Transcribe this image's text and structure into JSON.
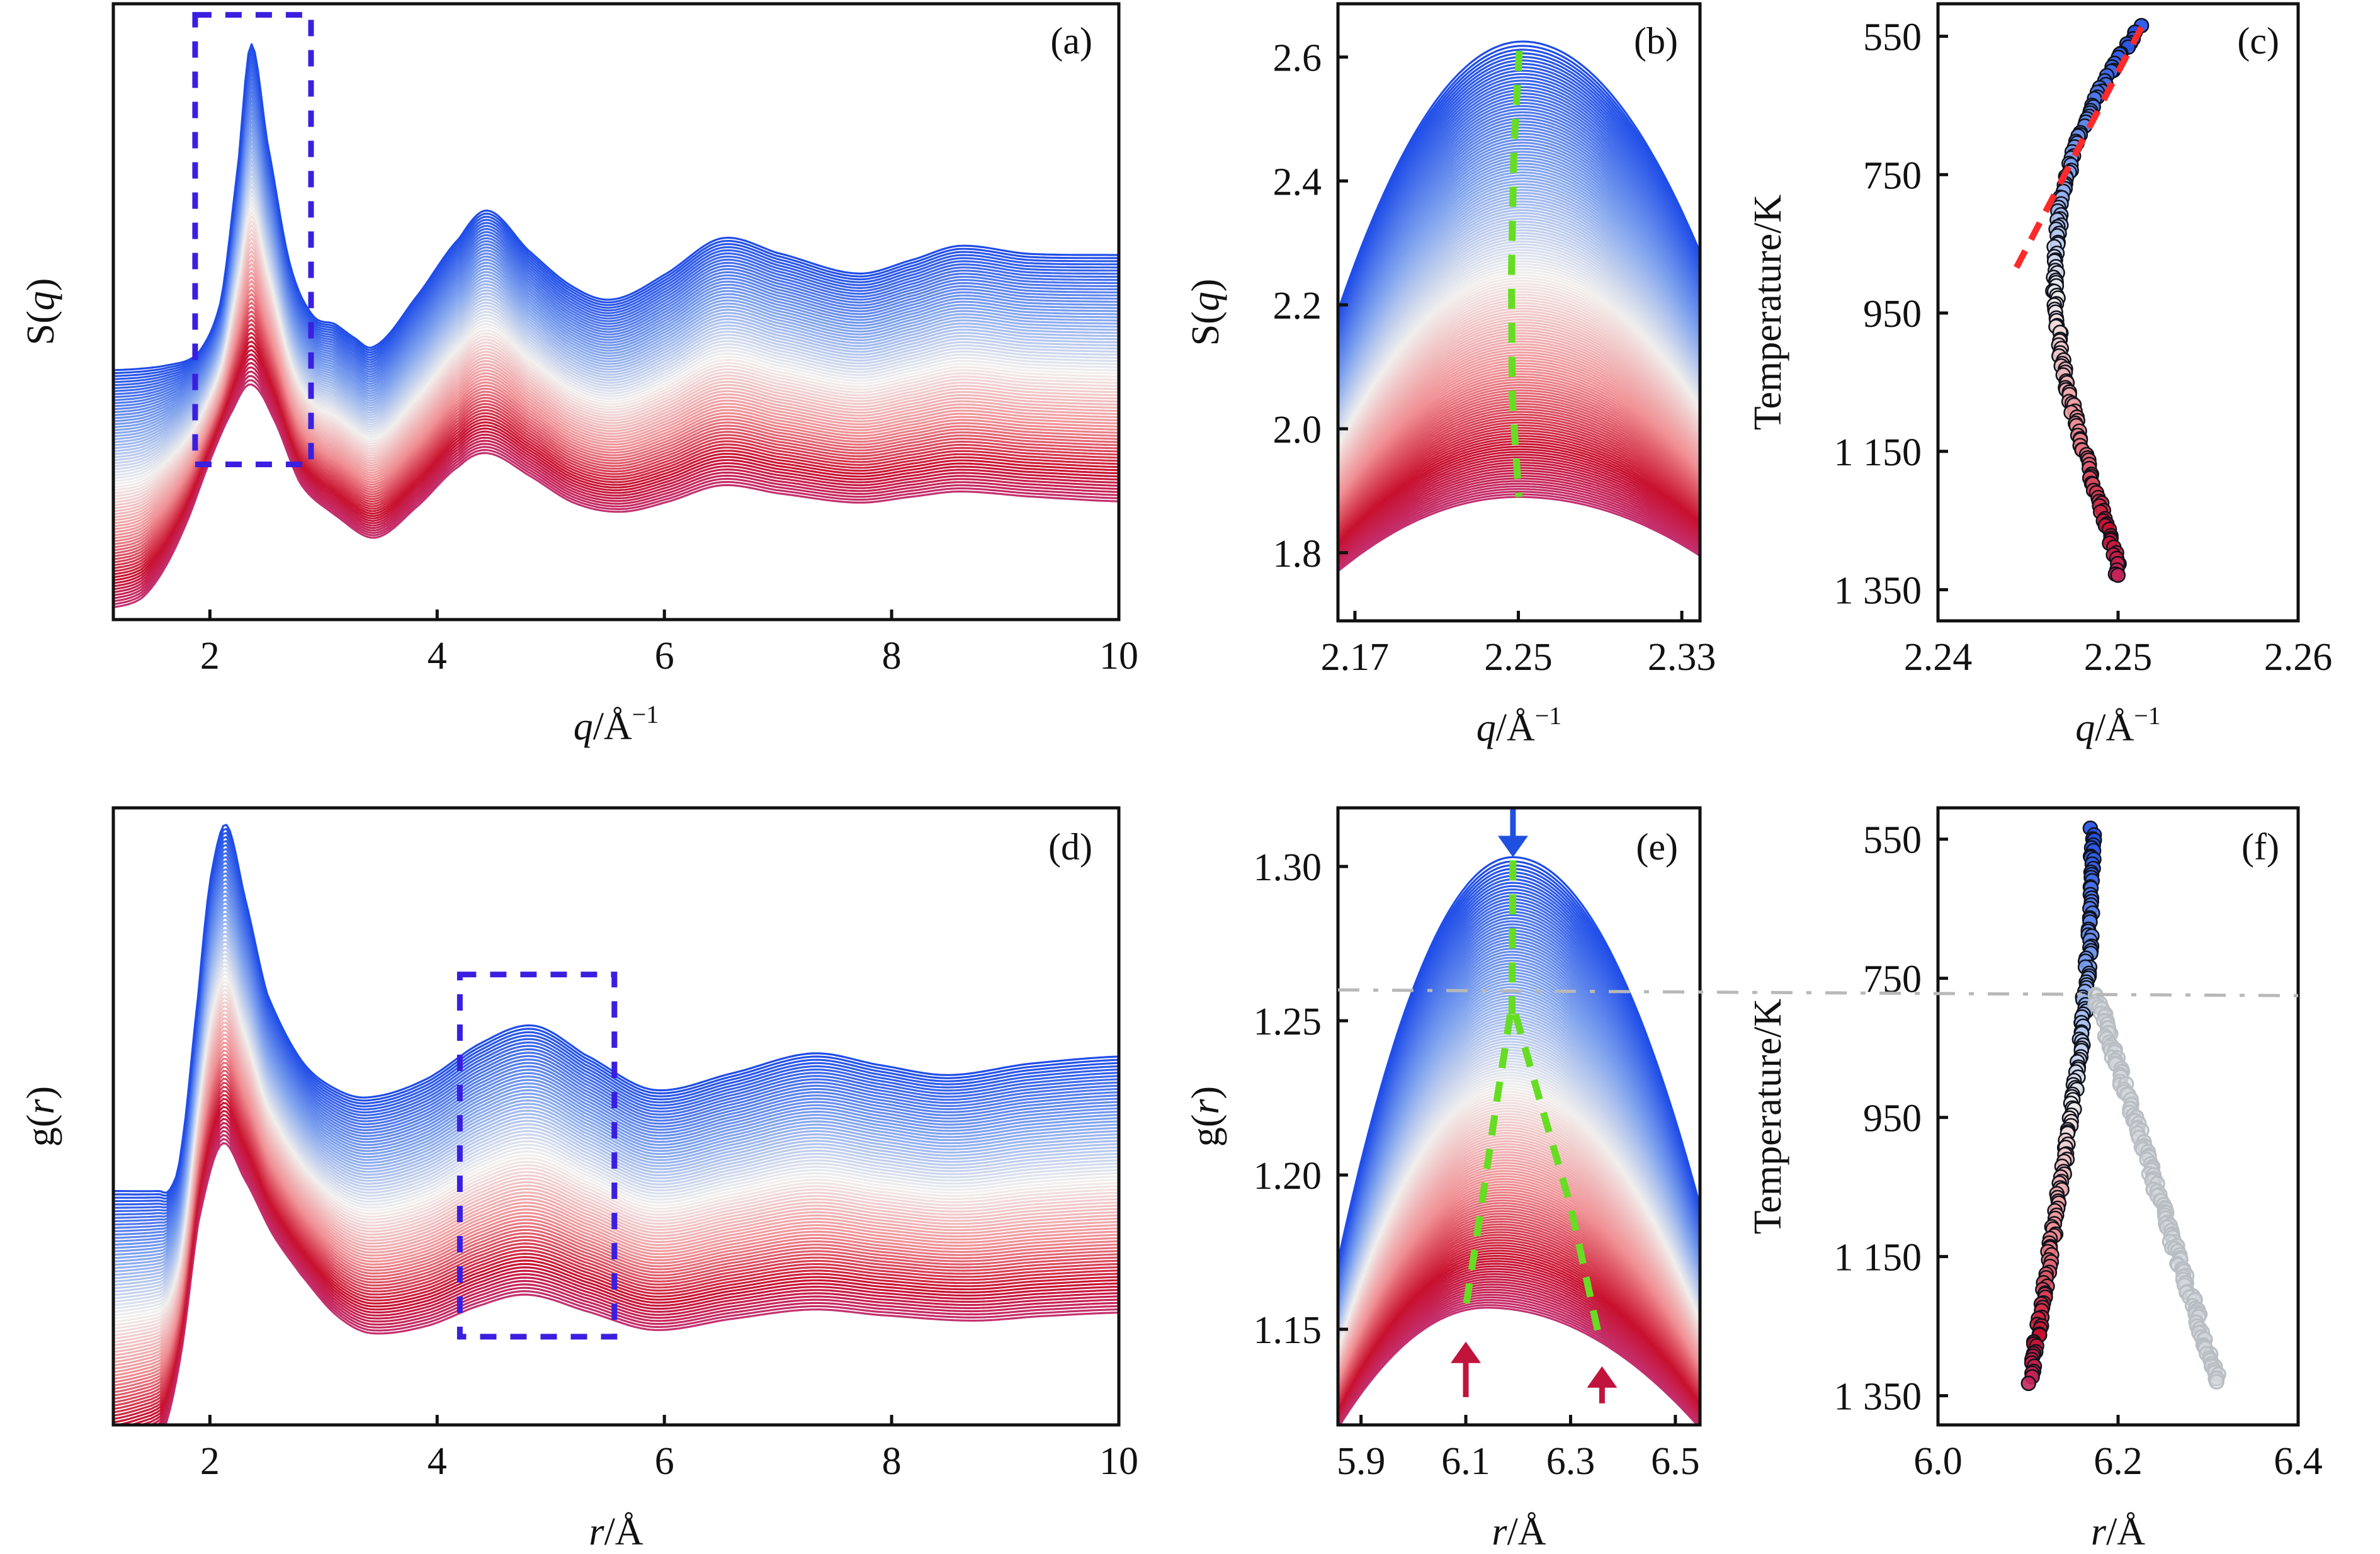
{
  "figure": {
    "colors": {
      "low_temperature": "#1f4de8",
      "mid_temperature": "#f1efed",
      "high_temperature": "#c8102e",
      "highest_temperature_tint": "#c4306f",
      "zoom_box": "#3a1fe0",
      "peak_trace": "#66dd22",
      "fit_line": "#ff2a2a",
      "reference_line": "#b8b8b8",
      "arrow_low_T": "#2050e0",
      "arrow_high_T": "#c0143c",
      "split_peak_markers": "#b8bec4"
    },
    "temperature_range_K": [
      537,
      1330
    ],
    "curve_count": 80
  },
  "chart_data": [
    {
      "id": "a",
      "panel_label": "(a)",
      "type": "line",
      "title": "",
      "xlabel_var": "q",
      "xlabel_unit": "/Å",
      "xlabel_sup": "−1",
      "ylabel_var": "q",
      "ylabel_prefix": "S(",
      "ylabel_suffix": ")",
      "xlim": [
        1.15,
        10
      ],
      "ylim": [
        0,
        1
      ],
      "y_units": "arbitrary (vertically offset curves, no y ticks)",
      "xticks": [
        2,
        4,
        6,
        8,
        10
      ],
      "xtick_labels": [
        "2",
        "4",
        "6",
        "8",
        "10"
      ],
      "series": [
        {
          "name": "lowest temperature (blue)",
          "x": [
            1.15,
            1.6,
            1.9,
            2.1,
            2.25,
            2.36,
            2.5,
            2.7,
            2.9,
            3.1,
            3.25,
            3.45,
            3.8,
            4.2,
            4.45,
            4.8,
            5.2,
            5.55,
            6.0,
            6.5,
            7.0,
            7.7,
            8.2,
            8.6,
            9.2,
            10
          ],
          "y": [
            0.405,
            0.412,
            0.433,
            0.52,
            0.74,
            0.934,
            0.78,
            0.58,
            0.495,
            0.48,
            0.46,
            0.444,
            0.52,
            0.62,
            0.664,
            0.6,
            0.54,
            0.52,
            0.56,
            0.619,
            0.595,
            0.562,
            0.585,
            0.607,
            0.594,
            0.592
          ]
        },
        {
          "name": "highest temperature (red)",
          "x": [
            1.15,
            1.4,
            1.6,
            1.8,
            2.0,
            2.2,
            2.36,
            2.55,
            2.8,
            3.1,
            3.45,
            3.8,
            4.2,
            4.45,
            4.8,
            5.2,
            5.6,
            6.0,
            6.5,
            7.0,
            7.7,
            8.2,
            8.6,
            9.2,
            10
          ],
          "y": [
            0.02,
            0.035,
            0.083,
            0.16,
            0.258,
            0.34,
            0.382,
            0.33,
            0.22,
            0.17,
            0.133,
            0.18,
            0.25,
            0.27,
            0.235,
            0.19,
            0.175,
            0.19,
            0.218,
            0.205,
            0.19,
            0.2,
            0.208,
            0.2,
            0.192
          ]
        }
      ],
      "annotations": [
        {
          "type": "dashed-box",
          "x": [
            1.87,
            2.89
          ],
          "y": [
            0.252,
            0.982
          ],
          "meaning": "region magnified in (b)"
        }
      ]
    },
    {
      "id": "b",
      "panel_label": "(b)",
      "type": "line",
      "xlabel_var": "q",
      "xlabel_unit": "/Å",
      "xlabel_sup": "−1",
      "ylabel_var": "q",
      "ylabel_prefix": "S(",
      "ylabel_suffix": ")",
      "xlim": [
        2.1617,
        2.3389
      ],
      "ylim": [
        1.69,
        2.686
      ],
      "xticks": [
        2.17,
        2.25,
        2.33
      ],
      "xtick_labels": [
        "2.17",
        "2.25",
        "2.33"
      ],
      "yticks": [
        1.8,
        2.0,
        2.2,
        2.4,
        2.6
      ],
      "ytick_labels": [
        "1.8",
        "2.0",
        "2.2",
        "2.4",
        "2.6"
      ],
      "series": [
        {
          "name": "lowest temperature (blue)",
          "peak_x": 2.252,
          "peak_y": 2.625,
          "y_at_xmin": 2.19,
          "y_at_xmax": 2.285
        },
        {
          "name": "highest temperature (red)",
          "peak_x": 2.25,
          "peak_y": 1.89,
          "y_at_xmin": 1.77,
          "y_at_xmax": 1.795
        }
      ],
      "annotations": [
        {
          "type": "dashed-line",
          "name": "peak position trace",
          "x": [
            2.2505,
            2.2478,
            2.2466,
            2.247,
            2.249,
            2.2503
          ],
          "y": [
            2.61,
            2.45,
            2.25,
            2.05,
            1.95,
            1.89
          ]
        }
      ]
    },
    {
      "id": "c",
      "panel_label": "(c)",
      "type": "scatter",
      "xlabel_var": "q",
      "xlabel_unit": "/Å",
      "xlabel_sup": "−1",
      "ylabel": "Temperature/K",
      "xlim": [
        2.24,
        2.26
      ],
      "ylim": [
        1395,
        503
      ],
      "y_inverted": true,
      "xticks": [
        2.24,
        2.25,
        2.26
      ],
      "xtick_labels": [
        "2.24",
        "2.25",
        "2.26"
      ],
      "yticks": [
        550,
        750,
        950,
        1150,
        1350
      ],
      "ytick_labels": [
        "550",
        "750",
        "950",
        "1 150",
        "1 350"
      ],
      "series": [
        {
          "name": "first peak position",
          "T": [
            537,
            560,
            600,
            650,
            700,
            750,
            800,
            850,
            900,
            950,
            1000,
            1050,
            1100,
            1150,
            1200,
            1250,
            1300,
            1330
          ],
          "x": [
            2.2512,
            2.2506,
            2.2496,
            2.2486,
            2.2478,
            2.2472,
            2.2468,
            2.2466,
            2.2465,
            2.2466,
            2.2468,
            2.2471,
            2.2476,
            2.2481,
            2.2487,
            2.2493,
            2.2498,
            2.25
          ]
        }
      ],
      "annotations": [
        {
          "type": "dashed-line",
          "name": "low-temperature linear fit",
          "x": [
            2.2513,
            2.2441
          ],
          "T": [
            537,
            897
          ]
        }
      ]
    },
    {
      "id": "d",
      "panel_label": "(d)",
      "type": "line",
      "xlabel_var": "r",
      "xlabel_unit": "/Å",
      "xlabel_sup": "",
      "ylabel_var": "r",
      "ylabel_prefix": "g(",
      "ylabel_suffix": ")",
      "xlim": [
        1.15,
        10
      ],
      "ylim": [
        0,
        1
      ],
      "y_units": "arbitrary (vertically offset curves, no y ticks)",
      "xticks": [
        2,
        4,
        6,
        8,
        10
      ],
      "xtick_labels": [
        "2",
        "4",
        "6",
        "8",
        "10"
      ],
      "series": [
        {
          "name": "lowest temperature (blue)",
          "x": [
            1.15,
            1.55,
            1.65,
            1.75,
            1.9,
            2.0,
            2.14,
            2.3,
            2.5,
            2.8,
            3.1,
            3.4,
            3.9,
            4.4,
            4.85,
            5.3,
            5.9,
            6.6,
            7.3,
            7.9,
            8.5,
            9.2,
            10
          ],
          "y": [
            0.379,
            0.379,
            0.382,
            0.45,
            0.7,
            0.88,
            0.973,
            0.86,
            0.7,
            0.592,
            0.545,
            0.531,
            0.56,
            0.62,
            0.647,
            0.6,
            0.543,
            0.57,
            0.602,
            0.583,
            0.567,
            0.585,
            0.597
          ]
        },
        {
          "name": "highest temperature (red)",
          "x": [
            1.15,
            1.5,
            1.6,
            1.75,
            1.9,
            2.1,
            2.3,
            2.55,
            2.8,
            3.1,
            3.4,
            3.9,
            4.4,
            4.8,
            5.3,
            5.9,
            6.6,
            7.3,
            7.9,
            8.7,
            9.3,
            10
          ],
          "y": [
            -0.05,
            -0.03,
            -0.005,
            0.12,
            0.33,
            0.455,
            0.4,
            0.31,
            0.244,
            0.18,
            0.149,
            0.16,
            0.195,
            0.211,
            0.185,
            0.154,
            0.172,
            0.187,
            0.178,
            0.169,
            0.176,
            0.182
          ]
        }
      ],
      "annotations": [
        {
          "type": "dashed-box",
          "x": [
            4.2,
            5.56
          ],
          "y": [
            0.143,
            0.73
          ],
          "meaning": "region magnified in (e)"
        }
      ]
    },
    {
      "id": "e",
      "panel_label": "(e)",
      "type": "line",
      "xlabel_var": "r",
      "xlabel_unit": "/Å",
      "xlabel_sup": "",
      "ylabel_var": "r",
      "ylabel_prefix": "g(",
      "ylabel_suffix": ")",
      "xlim": [
        5.856,
        6.547
      ],
      "ylim": [
        1.119,
        1.319
      ],
      "xticks": [
        5.9,
        6.1,
        6.3,
        6.5
      ],
      "xtick_labels": [
        "5.9",
        "6.1",
        "6.3",
        "6.5"
      ],
      "yticks": [
        1.15,
        1.2,
        1.25,
        1.3
      ],
      "ytick_labels": [
        "1.15",
        "1.20",
        "1.25",
        "1.30"
      ],
      "series": [
        {
          "name": "lowest temperature (blue)",
          "peak_x": 6.19,
          "peak_y": 1.303,
          "y_at_xmin": 1.172,
          "y_at_xmax": 1.19
        },
        {
          "name": "highest temperature (red)",
          "peak_x": 6.14,
          "peak_y": 1.157,
          "y_at_xmin": 1.118,
          "y_at_xmax": 1.118
        }
      ],
      "annotations": [
        {
          "type": "dashed-line",
          "name": "peak trace (single)",
          "x": [
            6.19,
            6.188
          ],
          "y": [
            1.302,
            1.252
          ]
        },
        {
          "type": "dashed-line",
          "name": "peak trace left branch",
          "x": [
            6.185,
            6.16,
            6.13,
            6.1
          ],
          "y": [
            1.252,
            1.225,
            1.19,
            1.157
          ]
        },
        {
          "type": "dashed-line",
          "name": "peak trace right branch",
          "x": [
            6.195,
            6.24,
            6.3,
            6.355
          ],
          "y": [
            1.252,
            1.225,
            1.19,
            1.147
          ]
        },
        {
          "type": "arrow",
          "direction": "down",
          "x": 6.19,
          "y_from": 1.319,
          "y_to": 1.303,
          "color_key": "arrow_low_T"
        },
        {
          "type": "arrow",
          "direction": "up",
          "x": 6.1,
          "y_from": 1.128,
          "y_to": 1.146,
          "color_key": "arrow_high_T"
        },
        {
          "type": "arrow",
          "direction": "up",
          "x": 6.36,
          "y_from": 1.126,
          "y_to": 1.138,
          "color_key": "arrow_high_T"
        },
        {
          "type": "dash-dot-line",
          "name": "transition reference",
          "y": 1.26
        }
      ]
    },
    {
      "id": "f",
      "panel_label": "(f)",
      "type": "scatter",
      "xlabel_var": "r",
      "xlabel_unit": "/Å",
      "xlabel_sup": "",
      "ylabel": "Temperature/K",
      "xlim": [
        6.0,
        6.4
      ],
      "ylim": [
        1392,
        505
      ],
      "y_inverted": true,
      "xticks": [
        6.0,
        6.2,
        6.4
      ],
      "xtick_labels": [
        "6.0",
        "6.2",
        "6.4"
      ],
      "yticks": [
        550,
        750,
        950,
        1150,
        1350
      ],
      "ytick_labels": [
        "550",
        "750",
        "950",
        "1 150",
        "1 350"
      ],
      "series": [
        {
          "name": "second peak position (main)",
          "T": [
            537,
            600,
            650,
            700,
            750,
            800,
            850,
            900,
            950,
            1000,
            1050,
            1100,
            1150,
            1200,
            1250,
            1300,
            1330
          ],
          "x": [
            6.172,
            6.171,
            6.17,
            6.168,
            6.165,
            6.162,
            6.158,
            6.153,
            6.148,
            6.142,
            6.136,
            6.13,
            6.124,
            6.118,
            6.112,
            6.106,
            6.103
          ]
        },
        {
          "name": "second peak position (split shoulder)",
          "T": [
            775,
            800,
            850,
            900,
            950,
            1000,
            1050,
            1100,
            1150,
            1200,
            1250,
            1300,
            1330
          ],
          "x": [
            6.176,
            6.182,
            6.193,
            6.205,
            6.218,
            6.23,
            6.242,
            6.254,
            6.266,
            6.279,
            6.291,
            6.303,
            6.31
          ]
        }
      ],
      "annotations": [
        {
          "type": "dash-dot-line",
          "name": "transition temperature",
          "T": 775
        }
      ]
    }
  ]
}
